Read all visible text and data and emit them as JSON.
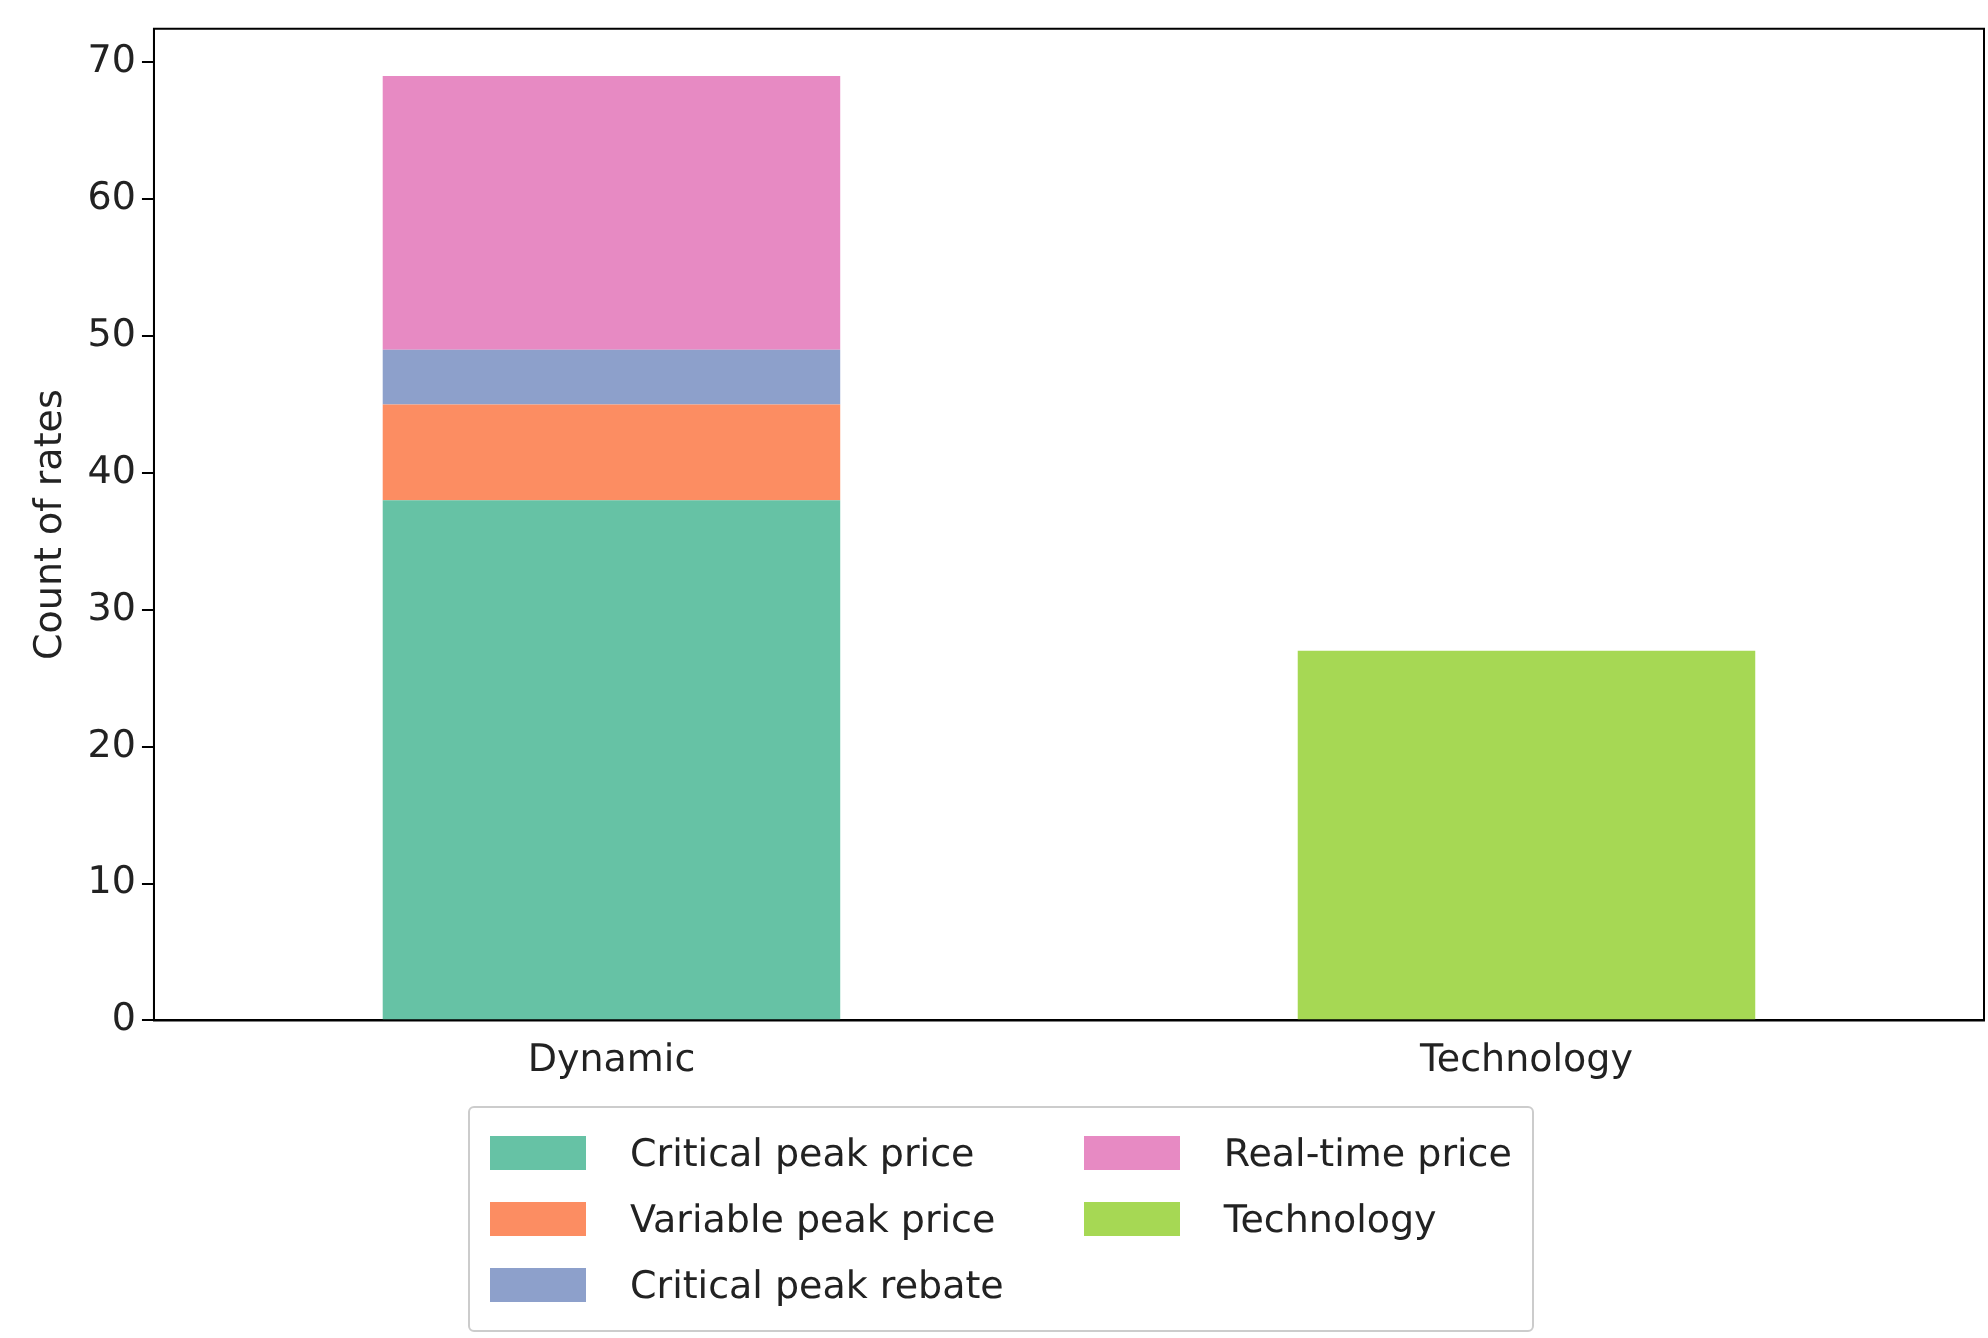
{
  "chart_data": {
    "type": "bar",
    "stacked": true,
    "ylabel": "Count of rates",
    "categories": [
      "Dynamic",
      "Technology"
    ],
    "series": [
      {
        "name": "Critical peak price",
        "color": "#66c2a5",
        "values": [
          38,
          null
        ]
      },
      {
        "name": "Variable peak price",
        "color": "#fc8d62",
        "values": [
          7,
          null
        ]
      },
      {
        "name": "Critical peak rebate",
        "color": "#8da0cb",
        "values": [
          4,
          null
        ]
      },
      {
        "name": "Real-time price",
        "color": "#e78ac3",
        "values": [
          20,
          null
        ]
      },
      {
        "name": "Technology",
        "color": "#a6d854",
        "values": [
          null,
          27
        ]
      }
    ],
    "ylim": [
      0,
      72.45
    ],
    "yticks": [
      0,
      10,
      20,
      30,
      40,
      50,
      60,
      70
    ],
    "grid": false,
    "legend": "bottom"
  }
}
